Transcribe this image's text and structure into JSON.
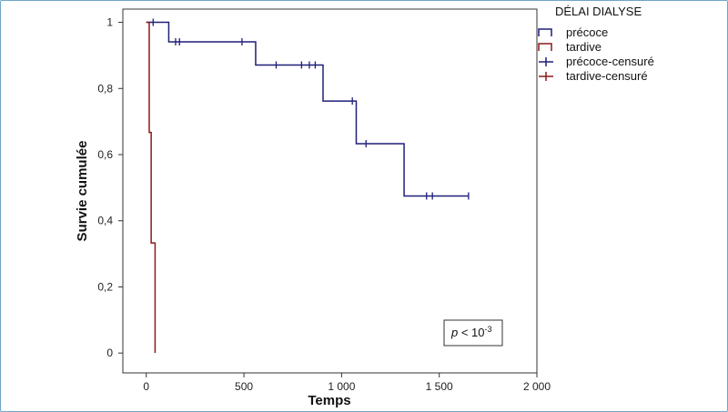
{
  "chart_data": {
    "type": "line",
    "subtype": "kaplan-meier",
    "title": "",
    "xlabel": "Temps",
    "ylabel": "Survie cumulée",
    "xlim": [
      -120,
      2000
    ],
    "ylim": [
      -0.06,
      1.04
    ],
    "x_ticks": [
      0,
      500,
      1000,
      1500,
      2000
    ],
    "x_tick_labels": [
      "0",
      "500",
      "1 000",
      "1 500",
      "2 000"
    ],
    "y_ticks": [
      0,
      0.2,
      0.4,
      0.6,
      0.8,
      1
    ],
    "y_tick_labels": [
      "0",
      "0,2",
      "0,4",
      "0,6",
      "0,8",
      "1"
    ],
    "grid": false,
    "legend": {
      "title": "DÉLAI DIALYSE",
      "position": "right",
      "entries": [
        {
          "label": "précoce",
          "kind": "step",
          "color": "#1f1f7a"
        },
        {
          "label": "tardive",
          "kind": "step",
          "color": "#8b1a1a"
        },
        {
          "label": "précoce-censuré",
          "kind": "censor",
          "color": "#1f1f7a"
        },
        {
          "label": "tardive-censuré",
          "kind": "censor",
          "color": "#8b1a1a"
        }
      ]
    },
    "series": [
      {
        "name": "précoce",
        "color": "#1f1f7a",
        "steps": [
          [
            0,
            1.0
          ],
          [
            115,
            0.941
          ],
          [
            560,
            0.871
          ],
          [
            905,
            0.762
          ],
          [
            1075,
            0.633
          ],
          [
            1320,
            0.475
          ],
          [
            1650,
            0.475
          ]
        ],
        "censored": [
          [
            35,
            1.0
          ],
          [
            150,
            0.941
          ],
          [
            170,
            0.941
          ],
          [
            490,
            0.941
          ],
          [
            665,
            0.871
          ],
          [
            795,
            0.871
          ],
          [
            835,
            0.871
          ],
          [
            865,
            0.871
          ],
          [
            1055,
            0.762
          ],
          [
            1125,
            0.633
          ],
          [
            1435,
            0.475
          ],
          [
            1465,
            0.475
          ],
          [
            1650,
            0.475
          ]
        ]
      },
      {
        "name": "tardive",
        "color": "#8b1a1a",
        "steps": [
          [
            0,
            1.0
          ],
          [
            15,
            0.667
          ],
          [
            25,
            0.333
          ],
          [
            45,
            0.0
          ]
        ],
        "censored": []
      }
    ],
    "annotation": {
      "text_italic": "p",
      "text": " < 10",
      "superscript": "-3"
    }
  }
}
